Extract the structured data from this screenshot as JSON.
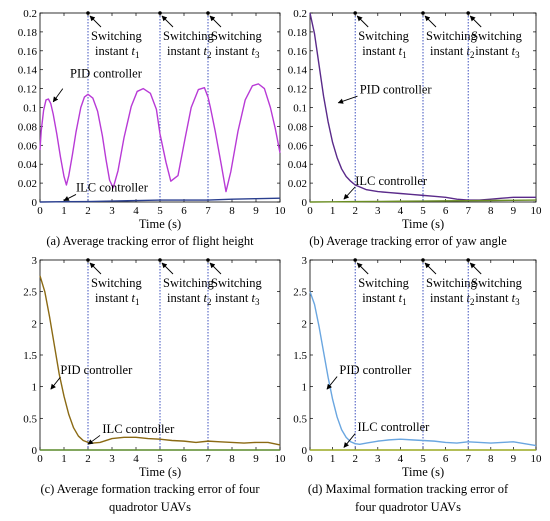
{
  "switch_label": "Switching",
  "instant_label": "instant",
  "xlabel": "Time (s)",
  "charts": [
    {
      "panel": "a",
      "caption": [
        "(a) Average tracking error of flight height"
      ],
      "xlim": [
        0,
        10
      ],
      "ylim": [
        0,
        0.2
      ],
      "xticks": [
        0,
        1,
        2,
        3,
        4,
        5,
        6,
        7,
        8,
        9,
        10
      ],
      "yticks": [
        0,
        0.02,
        0.04,
        0.06,
        0.08,
        0.1,
        0.12,
        0.14,
        0.16,
        0.18,
        0.2
      ],
      "switch_times": [
        2,
        5,
        7
      ],
      "series": [
        {
          "name": "PID controller",
          "color": "#b83ad6",
          "x": [
            0,
            0.05,
            0.15,
            0.25,
            0.35,
            0.45,
            0.55,
            0.7,
            0.85,
            1.0,
            1.1,
            1.2,
            1.35,
            1.5,
            1.7,
            1.85,
            2.0,
            2.2,
            2.4,
            2.6,
            2.75,
            2.9,
            3.05,
            3.25,
            3.5,
            3.8,
            4.05,
            4.3,
            4.6,
            4.85,
            5.0,
            5.1,
            5.25,
            5.45,
            5.75,
            6.05,
            6.3,
            6.6,
            6.85,
            7.0,
            7.1,
            7.3,
            7.55,
            7.75,
            7.95,
            8.25,
            8.55,
            8.85,
            9.1,
            9.35,
            9.6,
            9.8,
            10.0
          ],
          "y": [
            0.055,
            0.075,
            0.097,
            0.108,
            0.109,
            0.104,
            0.093,
            0.072,
            0.048,
            0.027,
            0.018,
            0.028,
            0.05,
            0.074,
            0.1,
            0.111,
            0.114,
            0.11,
            0.096,
            0.07,
            0.045,
            0.023,
            0.015,
            0.033,
            0.068,
            0.101,
            0.117,
            0.12,
            0.115,
            0.098,
            0.072,
            0.06,
            0.042,
            0.022,
            0.028,
            0.068,
            0.1,
            0.119,
            0.121,
            0.111,
            0.1,
            0.075,
            0.04,
            0.011,
            0.032,
            0.075,
            0.108,
            0.123,
            0.125,
            0.12,
            0.1,
            0.078,
            0.052
          ]
        },
        {
          "name": "ILC controller",
          "color": "#2a3f8f",
          "x": [
            0,
            1,
            2,
            3,
            4,
            5,
            6,
            7,
            8,
            9,
            10
          ],
          "y": [
            0,
            0.0003,
            0.0005,
            0.001,
            0.0015,
            0.002,
            0.002,
            0.002,
            0.003,
            0.0035,
            0.004
          ]
        }
      ],
      "label_pid": "PID controller",
      "label_ilc": "ILC controller"
    },
    {
      "panel": "b",
      "caption": [
        "(b) Average tracking error of yaw angle"
      ],
      "xlim": [
        0,
        10
      ],
      "ylim": [
        0,
        0.2
      ],
      "xticks": [
        0,
        1,
        2,
        3,
        4,
        5,
        6,
        7,
        8,
        9,
        10
      ],
      "yticks": [
        0,
        0.02,
        0.04,
        0.06,
        0.08,
        0.1,
        0.12,
        0.14,
        0.16,
        0.18,
        0.2
      ],
      "switch_times": [
        2,
        5,
        7
      ],
      "series": [
        {
          "name": "PID controller",
          "color": "#5a2a8a",
          "x": [
            0,
            0.2,
            0.4,
            0.6,
            0.8,
            1.0,
            1.2,
            1.4,
            1.6,
            1.8,
            2.0,
            2.5,
            3.0,
            3.5,
            4.0,
            4.5,
            5.0,
            5.5,
            6.0,
            6.5,
            7.0,
            7.5,
            8.0,
            8.5,
            9.0,
            9.5,
            10.0
          ],
          "y": [
            0.2,
            0.178,
            0.145,
            0.112,
            0.085,
            0.063,
            0.047,
            0.035,
            0.027,
            0.022,
            0.018,
            0.013,
            0.011,
            0.01,
            0.009,
            0.008,
            0.007,
            0.006,
            0.005,
            0.003,
            0.002,
            0.002,
            0.003,
            0.004,
            0.005,
            0.005,
            0.005
          ]
        },
        {
          "name": "ILC controller",
          "color": "#6b8e23",
          "x": [
            0,
            1,
            2,
            3,
            4,
            5,
            6,
            7,
            8,
            9,
            10
          ],
          "y": [
            0,
            0.0002,
            0.0004,
            0.0006,
            0.0008,
            0.001,
            0.0012,
            0.0014,
            0.0016,
            0.0018,
            0.002
          ]
        }
      ],
      "label_pid": "PID controller",
      "label_ilc": "ILC controller"
    },
    {
      "panel": "c",
      "caption": [
        "(c) Average formation tracking error of four",
        "quadrotor UAVs"
      ],
      "xlim": [
        0,
        10
      ],
      "ylim": [
        0,
        3
      ],
      "xticks": [
        0,
        1,
        2,
        3,
        4,
        5,
        6,
        7,
        8,
        9,
        10
      ],
      "yticks": [
        0,
        0.5,
        1,
        1.5,
        2,
        2.5,
        3
      ],
      "switch_times": [
        2,
        5,
        7
      ],
      "series": [
        {
          "name": "PID controller",
          "color": "#8b6a14",
          "x": [
            0,
            0.2,
            0.4,
            0.6,
            0.8,
            1.0,
            1.2,
            1.4,
            1.6,
            1.8,
            2.0,
            2.2,
            2.5,
            3.0,
            3.5,
            4.0,
            4.5,
            5.0,
            5.5,
            6.0,
            6.5,
            7.0,
            7.5,
            8.0,
            8.5,
            9.0,
            9.5,
            10.0
          ],
          "y": [
            2.75,
            2.5,
            2.1,
            1.65,
            1.2,
            0.85,
            0.56,
            0.35,
            0.22,
            0.15,
            0.12,
            0.11,
            0.12,
            0.18,
            0.2,
            0.2,
            0.18,
            0.17,
            0.15,
            0.14,
            0.12,
            0.14,
            0.13,
            0.12,
            0.11,
            0.12,
            0.12,
            0.08
          ]
        },
        {
          "name": "ILC controller",
          "color": "#5a8a2a",
          "x": [
            0,
            1,
            2,
            3,
            4,
            5,
            6,
            7,
            8,
            9,
            10
          ],
          "y": [
            0,
            0,
            0,
            0,
            0,
            0,
            0,
            0,
            0,
            0,
            0
          ]
        }
      ],
      "label_pid": "PID controller",
      "label_ilc": "ILC controller"
    },
    {
      "panel": "d",
      "caption": [
        "(d) Maximal formation tracking error of",
        "four quadrotor UAVs"
      ],
      "xlim": [
        0,
        10
      ],
      "ylim": [
        0,
        3
      ],
      "xticks": [
        0,
        1,
        2,
        3,
        4,
        5,
        6,
        7,
        8,
        9,
        10
      ],
      "yticks": [
        0,
        0.5,
        1,
        1.5,
        2,
        2.5,
        3
      ],
      "switch_times": [
        2,
        5,
        7
      ],
      "series": [
        {
          "name": "PID controller",
          "color": "#6aa6e0",
          "x": [
            0,
            0.2,
            0.4,
            0.6,
            0.8,
            1.0,
            1.2,
            1.4,
            1.6,
            1.8,
            2.0,
            2.2,
            2.5,
            3.0,
            3.5,
            4.0,
            4.5,
            5.0,
            5.5,
            6.0,
            6.5,
            7.0,
            7.5,
            8.0,
            8.5,
            9.0,
            9.5,
            10.0
          ],
          "y": [
            2.5,
            2.3,
            1.95,
            1.55,
            1.15,
            0.8,
            0.52,
            0.32,
            0.2,
            0.13,
            0.1,
            0.09,
            0.11,
            0.14,
            0.16,
            0.17,
            0.16,
            0.15,
            0.14,
            0.12,
            0.11,
            0.13,
            0.12,
            0.11,
            0.12,
            0.13,
            0.1,
            0.07
          ]
        },
        {
          "name": "ILC controller",
          "color": "#9aa820",
          "x": [
            0,
            1,
            2,
            3,
            4,
            5,
            6,
            7,
            8,
            9,
            10
          ],
          "y": [
            0,
            0,
            0,
            0,
            0,
            0,
            0,
            0,
            0,
            0,
            0
          ]
        }
      ],
      "label_pid": "PID controller",
      "label_ilc": "ILC controller"
    }
  ]
}
